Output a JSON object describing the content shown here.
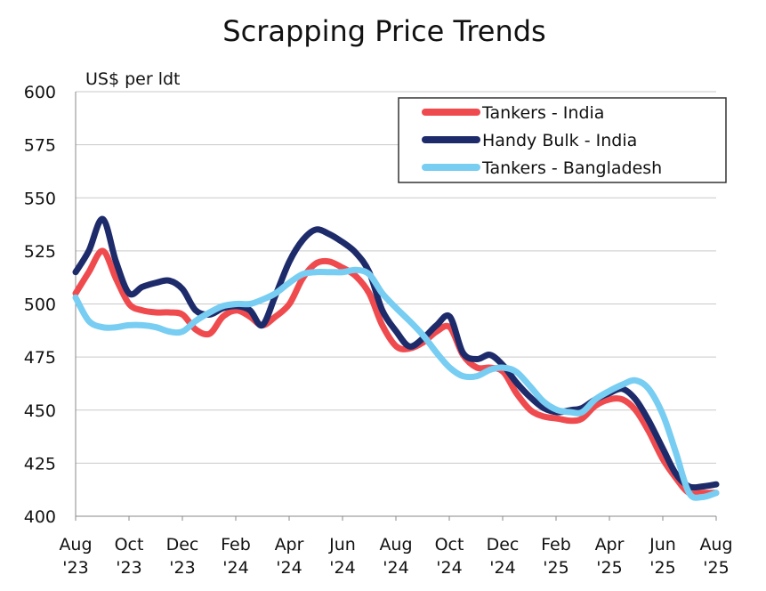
{
  "chart_data": {
    "type": "line",
    "title": "Scrapping Price Trends",
    "ylabel": "US$ per ldt",
    "xlabel": "",
    "ylim": [
      400,
      600
    ],
    "yticks": [
      400,
      425,
      450,
      475,
      500,
      525,
      550,
      575,
      600
    ],
    "xlim": [
      "2023-08",
      "2025-08"
    ],
    "x_tick_labels": [
      {
        "month": "Aug",
        "year": "'23"
      },
      {
        "month": "Oct",
        "year": "'23"
      },
      {
        "month": "Dec",
        "year": "'23"
      },
      {
        "month": "Feb",
        "year": "'24"
      },
      {
        "month": "Apr",
        "year": "'24"
      },
      {
        "month": "Jun",
        "year": "'24"
      },
      {
        "month": "Aug",
        "year": "'24"
      },
      {
        "month": "Oct",
        "year": "'24"
      },
      {
        "month": "Dec",
        "year": "'24"
      },
      {
        "month": "Feb",
        "year": "'25"
      },
      {
        "month": "Apr",
        "year": "'25"
      },
      {
        "month": "Jun",
        "year": "'25"
      },
      {
        "month": "Aug",
        "year": "'25"
      }
    ],
    "grid": "horizontal",
    "legend_position": "top-right",
    "series": [
      {
        "name": "Tankers - India",
        "color": "#ef4b4f",
        "x": [
          "2023-08-01",
          "2023-08-16",
          "2023-09-01",
          "2023-09-16",
          "2023-10-01",
          "2023-10-16",
          "2023-11-01",
          "2023-11-16",
          "2023-12-01",
          "2023-12-16",
          "2024-01-01",
          "2024-01-16",
          "2024-02-01",
          "2024-02-16",
          "2024-03-01",
          "2024-03-16",
          "2024-04-01",
          "2024-04-16",
          "2024-05-01",
          "2024-05-16",
          "2024-06-01",
          "2024-06-16",
          "2024-07-01",
          "2024-07-16",
          "2024-08-01",
          "2024-08-16",
          "2024-09-01",
          "2024-09-16",
          "2024-10-01",
          "2024-10-16",
          "2024-11-01",
          "2024-11-16",
          "2024-12-01",
          "2024-12-16",
          "2025-01-01",
          "2025-01-16",
          "2025-02-01",
          "2025-02-16",
          "2025-03-01",
          "2025-03-16",
          "2025-04-01",
          "2025-04-16",
          "2025-05-01",
          "2025-05-16",
          "2025-06-01",
          "2025-06-16",
          "2025-07-01",
          "2025-07-16",
          "2025-08-01"
        ],
        "values": [
          505,
          515,
          525,
          512,
          500,
          497,
          496,
          496,
          495,
          488,
          486,
          494,
          497,
          494,
          490,
          494,
          500,
          512,
          519,
          520,
          517,
          513,
          505,
          490,
          480,
          479,
          482,
          487,
          489,
          476,
          470,
          470,
          468,
          458,
          450,
          447,
          446,
          445,
          446,
          452,
          455,
          455,
          450,
          440,
          427,
          418,
          411,
          411,
          411
        ]
      },
      {
        "name": "Handy Bulk - India",
        "color": "#1e2b6a",
        "x": [
          "2023-08-01",
          "2023-08-16",
          "2023-09-01",
          "2023-09-16",
          "2023-10-01",
          "2023-10-16",
          "2023-11-01",
          "2023-11-16",
          "2023-12-01",
          "2023-12-16",
          "2024-01-01",
          "2024-01-16",
          "2024-02-01",
          "2024-02-16",
          "2024-03-01",
          "2024-03-16",
          "2024-04-01",
          "2024-04-16",
          "2024-05-01",
          "2024-05-16",
          "2024-06-01",
          "2024-06-16",
          "2024-07-01",
          "2024-07-16",
          "2024-08-01",
          "2024-08-16",
          "2024-09-01",
          "2024-09-16",
          "2024-10-01",
          "2024-10-16",
          "2024-11-01",
          "2024-11-16",
          "2024-12-01",
          "2024-12-16",
          "2025-01-01",
          "2025-01-16",
          "2025-02-01",
          "2025-02-16",
          "2025-03-01",
          "2025-03-16",
          "2025-04-01",
          "2025-04-16",
          "2025-05-01",
          "2025-05-16",
          "2025-06-01",
          "2025-06-16",
          "2025-07-01",
          "2025-07-16",
          "2025-08-01"
        ],
        "values": [
          515,
          525,
          540,
          520,
          505,
          508,
          510,
          511,
          507,
          497,
          495,
          498,
          499,
          497,
          490,
          504,
          520,
          530,
          535,
          533,
          529,
          524,
          515,
          497,
          487,
          480,
          484,
          490,
          494,
          477,
          474,
          476,
          471,
          463,
          456,
          451,
          449,
          450,
          451,
          455,
          458,
          460,
          455,
          445,
          432,
          420,
          414,
          414,
          415
        ]
      },
      {
        "name": "Tankers - Bangladesh",
        "color": "#78cdf2",
        "x": [
          "2023-08-01",
          "2023-08-16",
          "2023-09-01",
          "2023-09-16",
          "2023-10-01",
          "2023-10-16",
          "2023-11-01",
          "2023-11-16",
          "2023-12-01",
          "2023-12-16",
          "2024-01-01",
          "2024-01-16",
          "2024-02-01",
          "2024-02-16",
          "2024-03-01",
          "2024-03-16",
          "2024-04-01",
          "2024-04-16",
          "2024-05-01",
          "2024-05-16",
          "2024-06-01",
          "2024-06-16",
          "2024-07-01",
          "2024-07-16",
          "2024-08-01",
          "2024-08-16",
          "2024-09-01",
          "2024-09-16",
          "2024-10-01",
          "2024-10-16",
          "2024-11-01",
          "2024-11-16",
          "2024-12-01",
          "2024-12-16",
          "2025-01-01",
          "2025-01-16",
          "2025-02-01",
          "2025-02-16",
          "2025-03-01",
          "2025-03-16",
          "2025-04-01",
          "2025-04-16",
          "2025-05-01",
          "2025-05-16",
          "2025-06-01",
          "2025-06-16",
          "2025-07-01",
          "2025-07-16",
          "2025-08-01"
        ],
        "values": [
          503,
          492,
          489,
          489,
          490,
          490,
          489,
          487,
          487,
          492,
          496,
          499,
          500,
          500,
          502,
          505,
          510,
          514,
          515,
          515,
          515,
          516,
          514,
          505,
          498,
          492,
          485,
          477,
          470,
          466,
          466,
          469,
          470,
          468,
          461,
          454,
          450,
          449,
          449,
          455,
          459,
          462,
          464,
          460,
          448,
          430,
          411,
          409,
          411
        ]
      }
    ]
  }
}
